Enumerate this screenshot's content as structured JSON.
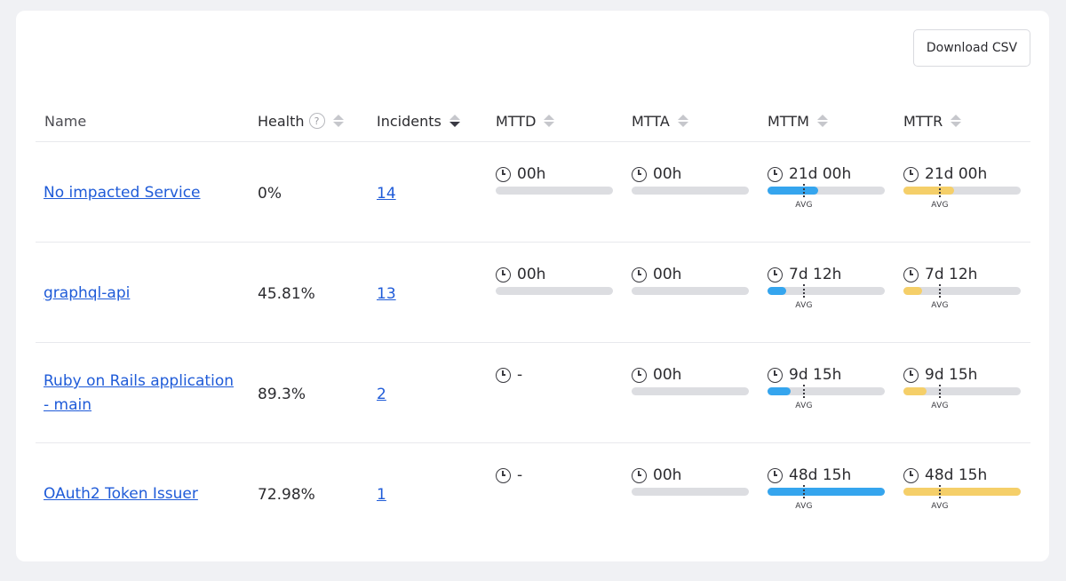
{
  "toolbar": {
    "download_label": "Download CSV"
  },
  "columns": {
    "name": "Name",
    "health": "Health",
    "health_help": "?",
    "incidents": "Incidents",
    "mttd": "MTTD",
    "mtta": "MTTA",
    "mttm": "MTTM",
    "mttr": "MTTR"
  },
  "avg_label": "AVG",
  "colors": {
    "link": "#1f5bd8",
    "mttm_bar": "#35a5ee",
    "mttr_bar": "#f5cf69",
    "track": "#dcdde1"
  },
  "rows": [
    {
      "name": "No impacted Service",
      "health": "0%",
      "incidents": "14",
      "mttd": {
        "value": "00h",
        "fraction": 0
      },
      "mtta": {
        "value": "00h",
        "fraction": 0
      },
      "mttm": {
        "value": "21d 00h",
        "fraction": 0.43
      },
      "mttr": {
        "value": "21d 00h",
        "fraction": 0.43
      }
    },
    {
      "name": "graphql-api",
      "health": "45.81%",
      "incidents": "13",
      "mttd": {
        "value": "00h",
        "fraction": 0
      },
      "mtta": {
        "value": "00h",
        "fraction": 0
      },
      "mttm": {
        "value": "7d 12h",
        "fraction": 0.16
      },
      "mttr": {
        "value": "7d 12h",
        "fraction": 0.16
      }
    },
    {
      "name": "Ruby on Rails application - main",
      "health": "89.3%",
      "incidents": "2",
      "mttd": {
        "value": "-",
        "fraction": null
      },
      "mtta": {
        "value": "00h",
        "fraction": 0
      },
      "mttm": {
        "value": "9d 15h",
        "fraction": 0.2
      },
      "mttr": {
        "value": "9d 15h",
        "fraction": 0.2
      }
    },
    {
      "name": "OAuth2 Token Issuer",
      "health": "72.98%",
      "incidents": "1",
      "mttd": {
        "value": "-",
        "fraction": null
      },
      "mtta": {
        "value": "00h",
        "fraction": 0
      },
      "mttm": {
        "value": "48d 15h",
        "fraction": 1.0
      },
      "mttr": {
        "value": "48d 15h",
        "fraction": 1.0
      }
    }
  ]
}
